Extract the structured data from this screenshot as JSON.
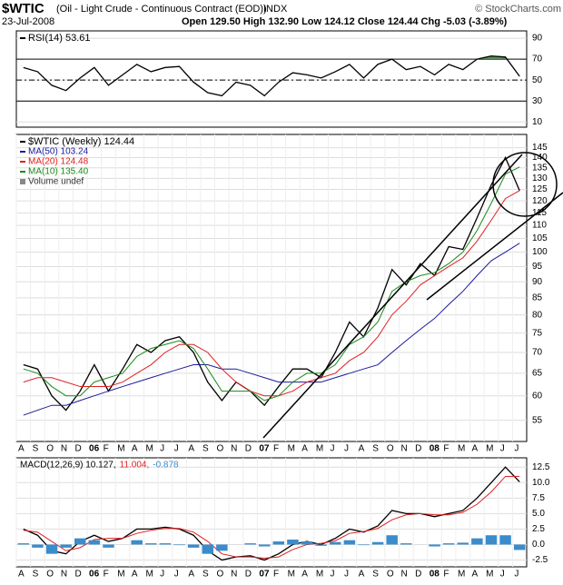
{
  "header": {
    "symbol": "$WTIC",
    "description": "(Oil - Light Crude - Continuous Contract (EOD))",
    "exchange": "INDX",
    "date": "23-Jul-2008",
    "quote": "Open 129.50 High 132.90 Low 124.12 Close 124.44 Chg -5.03 (-3.89%)",
    "credit": "© StockCharts.com"
  },
  "chart_data": [
    {
      "type": "line",
      "ylim": [
        5,
        97
      ],
      "yticks": [
        10,
        30,
        50,
        70,
        90
      ],
      "overbought": 70,
      "oversold": 30,
      "midline": 50,
      "series": [
        {
          "name": "RSI(14) 53.61",
          "color": "#000000",
          "fill_color": "#5a8a5a",
          "values": [
            62,
            58,
            45,
            40,
            52,
            62,
            45,
            55,
            65,
            58,
            62,
            63,
            48,
            38,
            35,
            48,
            45,
            35,
            48,
            57,
            55,
            52,
            58,
            65,
            52,
            65,
            70,
            60,
            63,
            55,
            65,
            60,
            70,
            73,
            72,
            53.61
          ]
        }
      ]
    },
    {
      "type": "line",
      "log_scale": true,
      "ylim": [
        51,
        152
      ],
      "yticks": [
        55,
        60,
        65,
        70,
        75,
        80,
        85,
        90,
        95,
        100,
        105,
        110,
        115,
        120,
        125,
        130,
        135,
        140,
        145
      ],
      "categories": [
        "A",
        "S",
        "O",
        "N",
        "D",
        "06",
        "F",
        "M",
        "A",
        "M",
        "J",
        "J",
        "A",
        "S",
        "O",
        "N",
        "D",
        "07",
        "F",
        "M",
        "A",
        "M",
        "J",
        "J",
        "A",
        "S",
        "O",
        "N",
        "D",
        "08",
        "F",
        "M",
        "A",
        "M",
        "J",
        "J"
      ],
      "extra_legend": "Volume undef",
      "series": [
        {
          "name": "$WTIC (Weekly) 124.44",
          "color": "#000000",
          "values": [
            67,
            66,
            60,
            57,
            61,
            67,
            61,
            66,
            72,
            70,
            73,
            74,
            70,
            63,
            59,
            63,
            61,
            58,
            62,
            66,
            66,
            64,
            70,
            78,
            74,
            82,
            94,
            89,
            96,
            92,
            102,
            101,
            113,
            127,
            140,
            124.44
          ]
        },
        {
          "name": "MA(50) 103.24",
          "color": "#1a1aa0",
          "values": [
            56,
            57,
            58,
            58,
            59,
            60,
            61,
            62,
            63,
            64,
            65,
            66,
            67,
            67,
            66,
            66,
            65,
            64,
            63,
            63,
            63,
            63,
            64,
            65,
            66,
            67,
            70,
            73,
            76,
            79,
            83,
            87,
            92,
            97,
            100,
            103.24
          ]
        },
        {
          "name": "MA(20) 124.48",
          "color": "#e02020",
          "values": [
            63,
            64,
            64,
            63,
            62,
            62,
            62,
            63,
            65,
            67,
            70,
            72,
            72,
            70,
            66,
            63,
            61,
            60,
            60,
            61,
            63,
            64,
            65,
            68,
            70,
            74,
            80,
            84,
            89,
            92,
            95,
            98,
            104,
            112,
            121,
            124.48
          ]
        },
        {
          "name": "MA(10) 135.40",
          "color": "#1a8a1a",
          "values": [
            66,
            65,
            62,
            60,
            60,
            63,
            64,
            65,
            69,
            71,
            72,
            73,
            71,
            66,
            61,
            61,
            61,
            59,
            60,
            63,
            65,
            65,
            67,
            72,
            74,
            78,
            87,
            90,
            92,
            93,
            96,
            100,
            108,
            119,
            132,
            135.4
          ]
        }
      ]
    },
    {
      "type": "line",
      "ylim": [
        -3.6,
        14
      ],
      "yticks": [
        -2.5,
        {
          "value": 0,
          "label": "0.0"
        },
        2.5,
        {
          "value": 5,
          "label": "5.0"
        },
        7.5,
        {
          "value": 10,
          "label": "10.0"
        },
        12.5
      ],
      "categories": [
        "A",
        "S",
        "O",
        "N",
        "D",
        "06",
        "F",
        "M",
        "A",
        "M",
        "J",
        "J",
        "A",
        "S",
        "O",
        "N",
        "D",
        "07",
        "F",
        "M",
        "A",
        "M",
        "J",
        "J",
        "A",
        "S",
        "O",
        "N",
        "D",
        "08",
        "F",
        "M",
        "A",
        "M",
        "J",
        "J"
      ],
      "series": [
        {
          "name": "MACD(12,26,9) 10.127,",
          "color": "#000000",
          "values": [
            2.5,
            1.5,
            -1,
            -1.5,
            0.5,
            1.5,
            0.5,
            1,
            2.5,
            2.5,
            2.8,
            2.5,
            1.5,
            -1,
            -2.5,
            -2,
            -1.8,
            -2.5,
            -1.5,
            0,
            0.5,
            0,
            1,
            2.5,
            2,
            3,
            5.5,
            5,
            5,
            4.5,
            5,
            5.5,
            7.5,
            10,
            12.5,
            10.127
          ]
        },
        {
          "name": "11.004,",
          "color": "#e02020",
          "values": [
            2.3,
            2,
            0.5,
            -1,
            -0.5,
            0.8,
            1,
            1,
            1.8,
            2.3,
            2.6,
            2.6,
            2,
            0.5,
            -1.5,
            -2,
            -2,
            -2.2,
            -2,
            -0.8,
            0,
            0.2,
            0.6,
            1.8,
            2.1,
            2.6,
            4,
            4.8,
            5,
            4.8,
            4.8,
            5.2,
            6.5,
            8.5,
            11,
            11.004
          ]
        },
        {
          "name": "-0.878",
          "color": "#3a8ccc",
          "style": "histogram",
          "values": [
            0.2,
            -0.5,
            -1.5,
            -0.5,
            1,
            0.7,
            -0.5,
            0,
            0.7,
            0.2,
            0.2,
            -0.1,
            -0.5,
            -1.5,
            -1,
            0,
            0.2,
            -0.3,
            0.5,
            0.8,
            0.5,
            -0.2,
            0.4,
            0.7,
            -0.1,
            0.4,
            1.5,
            0.2,
            0,
            -0.3,
            0.2,
            0.3,
            1,
            1.5,
            1.5,
            -0.878
          ]
        }
      ]
    }
  ]
}
